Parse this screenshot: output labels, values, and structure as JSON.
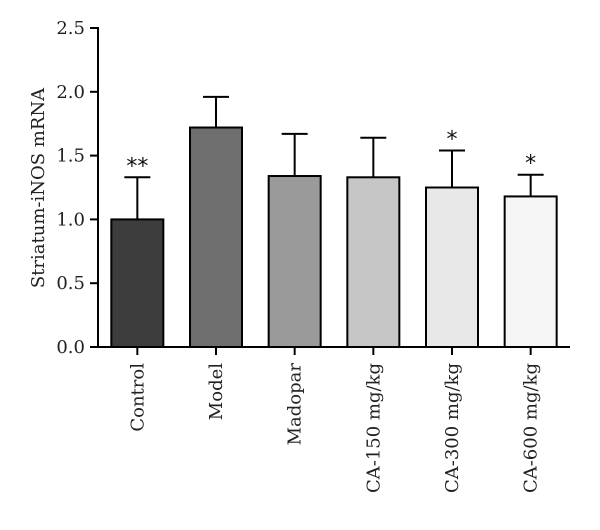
{
  "chart_data": {
    "type": "bar",
    "title": "",
    "xlabel": "",
    "ylabel": "Striatum-iNOS mRNA",
    "ylim": [
      0,
      2.5
    ],
    "yticks": [
      "0.0",
      "0.5",
      "1.0",
      "1.5",
      "2.0",
      "2.5"
    ],
    "grid": false,
    "categories": [
      "Control",
      "Model",
      "Madopar",
      "CA-150 mg/kg",
      "CA-300 mg/kg",
      "CA-600 mg/kg"
    ],
    "values": [
      1.0,
      1.72,
      1.34,
      1.33,
      1.25,
      1.18
    ],
    "errors": [
      0.33,
      0.24,
      0.33,
      0.31,
      0.29,
      0.17
    ],
    "significance": [
      "**",
      "",
      "",
      "",
      "*",
      "*"
    ],
    "colors": [
      "#3d3d3d",
      "#6e6e6e",
      "#9a9a9a",
      "#c6c6c6",
      "#e8e8e8",
      "#f5f5f5"
    ]
  }
}
